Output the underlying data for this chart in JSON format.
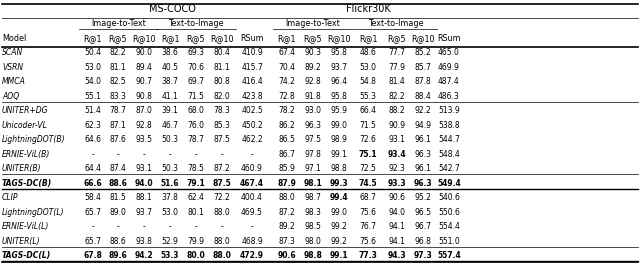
{
  "title_left": "MS-COCO",
  "title_right": "Flickr30K",
  "row_labels": [
    "SCAN",
    "VSRN",
    "MMCA",
    "AOQ",
    "UNITER+DG",
    "Unicoder-VL",
    "LightningDOT(B)",
    "ERNIE-ViL(B)",
    "UNITER(B)",
    "TAGS-DC(B)",
    "CLIP",
    "LightningDOT(L)",
    "ERNIE-ViL(L)",
    "UNITER(L)",
    "TAGS-DC(L)"
  ],
  "data": [
    [
      "50.4",
      "82.2",
      "90.0",
      "38.6",
      "69.3",
      "80.4",
      "410.9",
      "67.4",
      "90.3",
      "95.8",
      "48.6",
      "77.7",
      "85.2",
      "465.0"
    ],
    [
      "53.0",
      "81.1",
      "89.4",
      "40.5",
      "70.6",
      "81.1",
      "415.7",
      "70.4",
      "89.2",
      "93.7",
      "53.0",
      "77.9",
      "85.7",
      "469.9"
    ],
    [
      "54.0",
      "82.5",
      "90.7",
      "38.7",
      "69.7",
      "80.8",
      "416.4",
      "74.2",
      "92.8",
      "96.4",
      "54.8",
      "81.4",
      "87.8",
      "487.4"
    ],
    [
      "55.1",
      "83.3",
      "90.8",
      "41.1",
      "71.5",
      "82.0",
      "423.8",
      "72.8",
      "91.8",
      "95.8",
      "55.3",
      "82.2",
      "88.4",
      "486.3"
    ],
    [
      "51.4",
      "78.7",
      "87.0",
      "39.1",
      "68.0",
      "78.3",
      "402.5",
      "78.2",
      "93.0",
      "95.9",
      "66.4",
      "88.2",
      "92.2",
      "513.9"
    ],
    [
      "62.3",
      "87.1",
      "92.8",
      "46.7",
      "76.0",
      "85.3",
      "450.2",
      "86.2",
      "96.3",
      "99.0",
      "71.5",
      "90.9",
      "94.9",
      "538.8"
    ],
    [
      "64.6",
      "87.6",
      "93.5",
      "50.3",
      "78.7",
      "87.5",
      "462.2",
      "86.5",
      "97.5",
      "98.9",
      "72.6",
      "93.1",
      "96.1",
      "544.7"
    ],
    [
      "-",
      "-",
      "-",
      "-",
      "-",
      "-",
      "-",
      "86.7",
      "97.8",
      "99.1",
      "75.1",
      "93.4",
      "96.3",
      "548.4"
    ],
    [
      "64.4",
      "87.4",
      "93.1",
      "50.3",
      "78.5",
      "87.2",
      "460.9",
      "85.9",
      "97.1",
      "98.8",
      "72.5",
      "92.3",
      "96.1",
      "542.7"
    ],
    [
      "66.6",
      "88.6",
      "94.0",
      "51.6",
      "79.1",
      "87.5",
      "467.4",
      "87.9",
      "98.1",
      "99.3",
      "74.5",
      "93.3",
      "96.3",
      "549.4"
    ],
    [
      "58.4",
      "81.5",
      "88.1",
      "37.8",
      "62.4",
      "72.2",
      "400.4",
      "88.0",
      "98.7",
      "99.4",
      "68.7",
      "90.6",
      "95.2",
      "540.6"
    ],
    [
      "65.7",
      "89.0",
      "93.7",
      "53.0",
      "80.1",
      "88.0",
      "469.5",
      "87.2",
      "98.3",
      "99.0",
      "75.6",
      "94.0",
      "96.5",
      "550.6"
    ],
    [
      "-",
      "-",
      "-",
      "-",
      "-",
      "-",
      "-",
      "89.2",
      "98.5",
      "99.2",
      "76.7",
      "94.1",
      "96.7",
      "554.4"
    ],
    [
      "65.7",
      "88.6",
      "93.8",
      "52.9",
      "79.9",
      "88.0",
      "468.9",
      "87.3",
      "98.0",
      "99.2",
      "75.6",
      "94.1",
      "96.8",
      "551.0"
    ],
    [
      "67.8",
      "89.6",
      "94.2",
      "53.3",
      "80.0",
      "88.0",
      "472.9",
      "90.6",
      "98.8",
      "99.1",
      "77.3",
      "94.3",
      "97.3",
      "557.4"
    ]
  ],
  "bold_cells": {
    "7": [
      [
        10,
        true
      ],
      [
        11,
        true
      ]
    ],
    "9": [
      [
        0,
        true
      ],
      [
        1,
        true
      ],
      [
        2,
        true
      ],
      [
        3,
        true
      ],
      [
        4,
        true
      ],
      [
        5,
        true
      ],
      [
        6,
        true
      ],
      [
        7,
        true
      ],
      [
        8,
        true
      ],
      [
        9,
        true
      ],
      [
        13,
        true
      ]
    ],
    "10": [
      [
        9,
        true
      ]
    ],
    "14": [
      [
        0,
        true
      ],
      [
        1,
        true
      ],
      [
        2,
        true
      ],
      [
        3,
        true
      ],
      [
        5,
        true
      ],
      [
        7,
        true
      ],
      [
        8,
        true
      ],
      [
        11,
        true
      ],
      [
        12,
        true
      ],
      [
        13,
        true
      ]
    ]
  },
  "tags_rows": [
    9,
    14
  ],
  "group_after": [
    3,
    8,
    13
  ],
  "tags_after": [
    9,
    14
  ],
  "background_color": "#ffffff"
}
